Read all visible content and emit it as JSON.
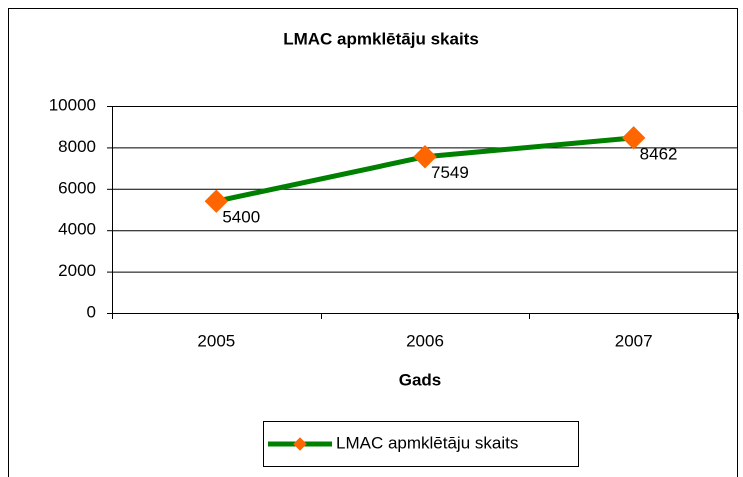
{
  "chart_data": {
    "type": "line",
    "title": "LMAC apmklētāju skaits",
    "x_label": "Gads",
    "categories": [
      "2005",
      "2006",
      "2007"
    ],
    "series": [
      {
        "name": "LMAC apmklētāju skaits",
        "color": "#008000",
        "marker_color": "#ff6600",
        "values": [
          5400,
          7549,
          8462
        ]
      }
    ],
    "ylim": [
      0,
      10000
    ],
    "yticks": [
      0,
      2000,
      4000,
      6000,
      8000,
      10000
    ],
    "grid": true,
    "legend": "bottom"
  }
}
